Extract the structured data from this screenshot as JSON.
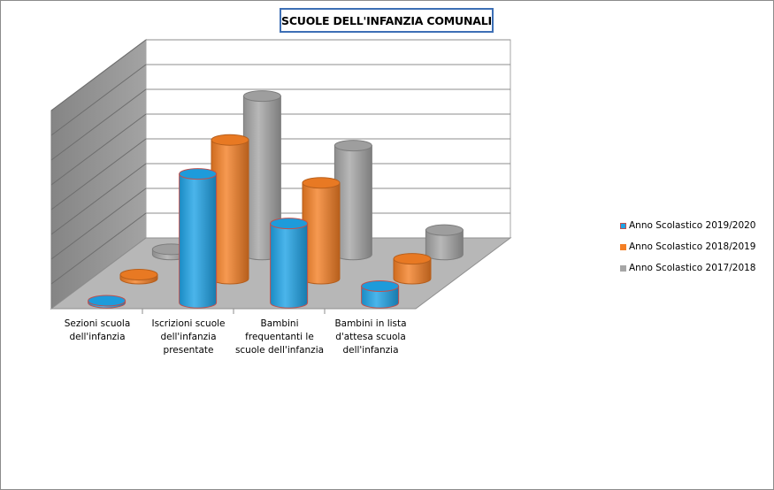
{
  "chart_data": {
    "type": "bar",
    "title": "SCUOLE DELL'INFANZIA COMUNALI",
    "style": "3d-cylinder",
    "categories": [
      "Sezioni scuola dell'infanzia",
      "Iscrizioni scuole dell'infanzia presentate",
      "Bambini frequentanti le scuole dell'infanzia",
      "Bambini in lista d'attesa scuola dell'infanzia"
    ],
    "series": [
      {
        "name": "Anno Scolastico 2019/2020",
        "color": "#1ea3e6",
        "edge_color": "#c0504d",
        "values": [
          3,
          195,
          120,
          25
        ]
      },
      {
        "name": "Anno Scolastico 2018/2019",
        "color": "#f47f25",
        "values": [
          6,
          210,
          145,
          30
        ]
      },
      {
        "name": "Anno Scolastico 2017/2018",
        "color": "#a6a6a6",
        "values": [
          8,
          240,
          165,
          37
        ]
      }
    ],
    "ylim": [
      0,
      300
    ],
    "grid": true,
    "legend_position": "right"
  }
}
